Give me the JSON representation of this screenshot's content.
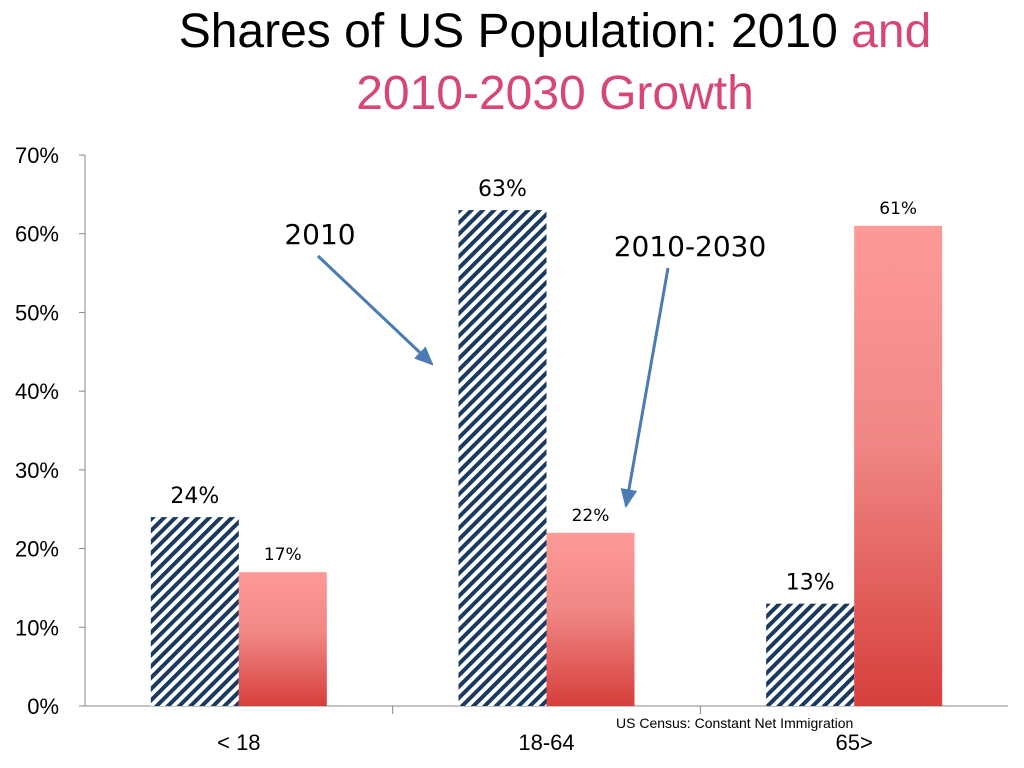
{
  "title": {
    "line1_black": "Shares of US Population: 2010",
    "line1_accent": "and",
    "line2_accent": "2010-2030 Growth"
  },
  "colors": {
    "accent": "#d6467a",
    "pattern_stripe": "#1b3a5f",
    "growth_top": "#fd9a97",
    "growth_bottom": "#d63f3c",
    "arrow": "#4a7bb5"
  },
  "annotations": {
    "label_2010": "2010",
    "label_2010_2030": "2010-2030"
  },
  "source_note": "US Census: Constant Net Immigration",
  "chart_data": {
    "type": "bar",
    "categories": [
      "< 18",
      "18-64",
      "65>"
    ],
    "series": [
      {
        "name": "2010",
        "values": [
          24,
          63,
          13
        ],
        "labels": [
          "24%",
          "63%",
          "13%"
        ]
      },
      {
        "name": "2010-2030",
        "values": [
          17,
          22,
          61
        ],
        "labels": [
          "17%",
          "22%",
          "61%"
        ]
      }
    ],
    "ylim": [
      0,
      70
    ],
    "yticks": [
      "0%",
      "10%",
      "20%",
      "30%",
      "40%",
      "50%",
      "60%",
      "70%"
    ],
    "grid": false,
    "legend": "none"
  }
}
